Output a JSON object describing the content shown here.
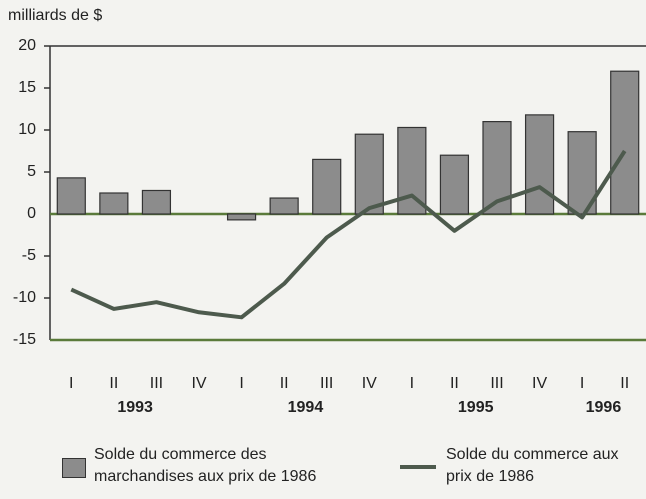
{
  "chart_data": {
    "type": "bar_line",
    "y_axis_label": "milliards de $",
    "categories": [
      "I",
      "II",
      "III",
      "IV",
      "I",
      "II",
      "III",
      "IV",
      "I",
      "II",
      "III",
      "IV",
      "I",
      "II"
    ],
    "years": [
      "1993",
      "1994",
      "1995",
      "1996"
    ],
    "series": [
      {
        "name": "Solde du commerce des marchandises aux prix de 1986",
        "type": "bar",
        "color": "#8c8c8c",
        "values": [
          4.3,
          2.5,
          2.8,
          0,
          -0.7,
          1.9,
          6.5,
          9.5,
          10.3,
          7,
          11,
          11.8,
          9.8,
          17
        ]
      },
      {
        "name": "Solde du commerce aux prix de 1986",
        "type": "line",
        "color": "#4d5a4d",
        "values": [
          -9,
          -11.3,
          -10.5,
          -11.7,
          -12.3,
          -8.3,
          -2.8,
          0.7,
          2.2,
          -2,
          1.5,
          3.2,
          -0.4,
          7.5
        ]
      }
    ],
    "ylim": [
      -15,
      20
    ],
    "yticks": [
      -15,
      -10,
      -5,
      0,
      5,
      10,
      15,
      20
    ]
  }
}
